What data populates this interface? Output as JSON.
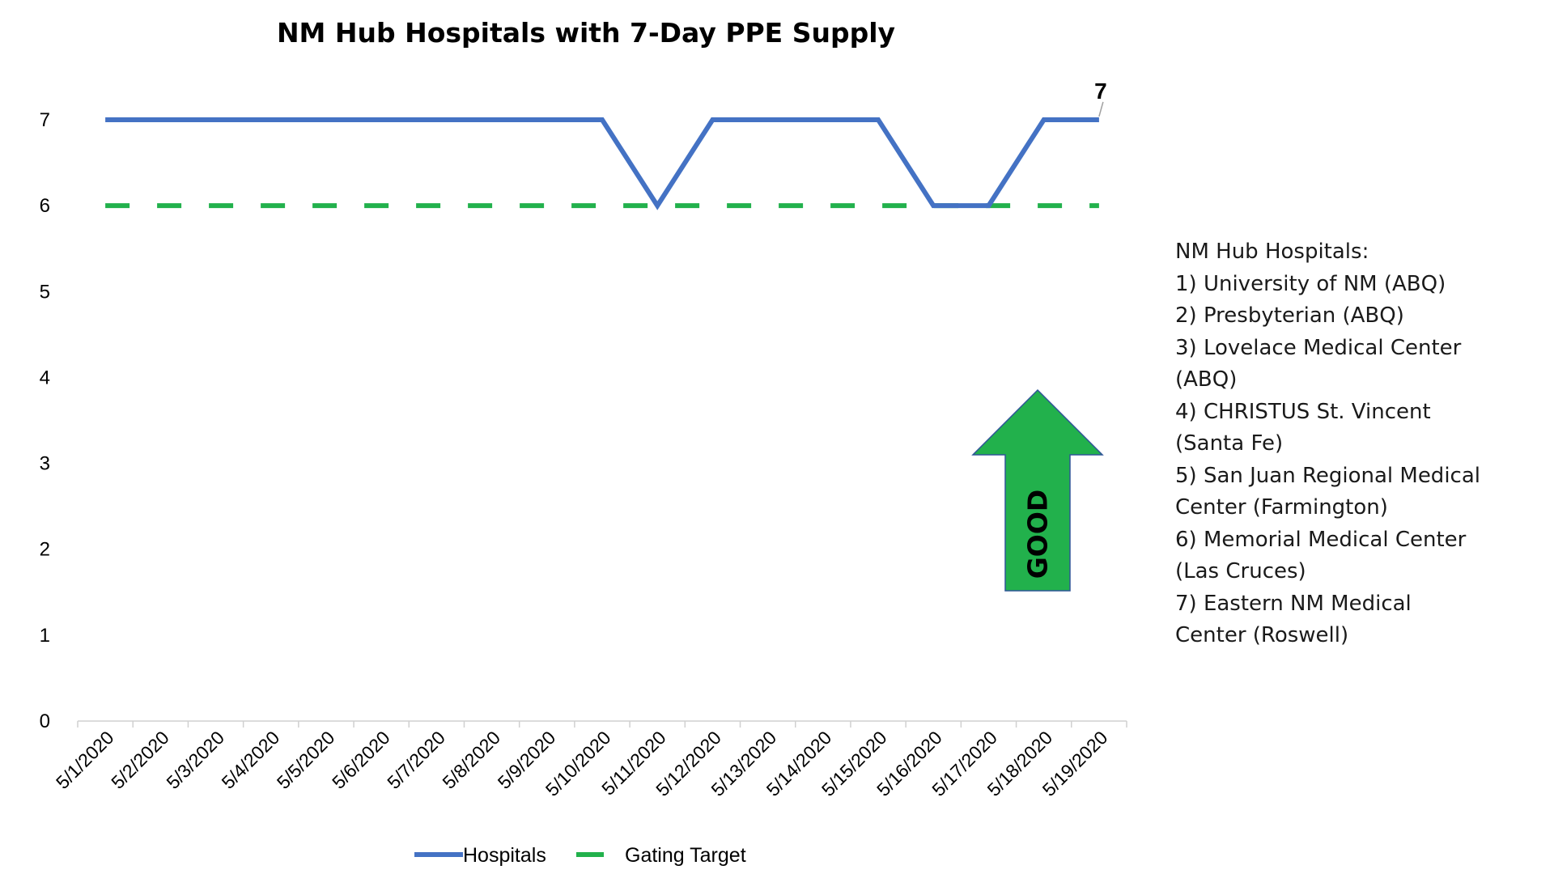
{
  "chart_data": {
    "type": "line",
    "title": "NM Hub Hospitals with 7-Day PPE Supply",
    "xlabel": "",
    "ylabel": "",
    "categories": [
      "5/1/2020",
      "5/2/2020",
      "5/3/2020",
      "5/4/2020",
      "5/5/2020",
      "5/6/2020",
      "5/7/2020",
      "5/8/2020",
      "5/9/2020",
      "5/10/2020",
      "5/11/2020",
      "5/12/2020",
      "5/13/2020",
      "5/14/2020",
      "5/15/2020",
      "5/16/2020",
      "5/17/2020",
      "5/18/2020",
      "5/19/2020"
    ],
    "series": [
      {
        "name": "Hospitals",
        "values": [
          7,
          7,
          7,
          7,
          7,
          7,
          7,
          7,
          7,
          7,
          6,
          7,
          7,
          7,
          7,
          6,
          6,
          7,
          7
        ],
        "color": "#4472c4",
        "style": "solid"
      },
      {
        "name": "Gating Target",
        "values": [
          6,
          6,
          6,
          6,
          6,
          6,
          6,
          6,
          6,
          6,
          6,
          6,
          6,
          6,
          6,
          6,
          6,
          6,
          6
        ],
        "color": "#22b14c",
        "style": "dashed"
      }
    ],
    "ylim": [
      0,
      7
    ],
    "yticks": [
      "0",
      "1",
      "2",
      "3",
      "4",
      "5",
      "6",
      "7"
    ],
    "last_point_label": "7",
    "grid": false,
    "legend_position": "bottom"
  },
  "annotation": {
    "arrow_text": "GOOD",
    "arrow_color": "#22b14c",
    "arrow_direction": "up"
  },
  "hospital_list": {
    "heading": "NM Hub Hospitals:",
    "lines": [
      "1) University of NM (ABQ)",
      "2) Presbyterian (ABQ)",
      "3) Lovelace Medical Center",
      "(ABQ)",
      "4) CHRISTUS St. Vincent",
      "(Santa Fe)",
      "5) San Juan Regional Medical",
      "Center (Farmington)",
      "6) Memorial Medical Center",
      "(Las Cruces)",
      "7) Eastern NM Medical",
      "Center (Roswell)"
    ]
  }
}
